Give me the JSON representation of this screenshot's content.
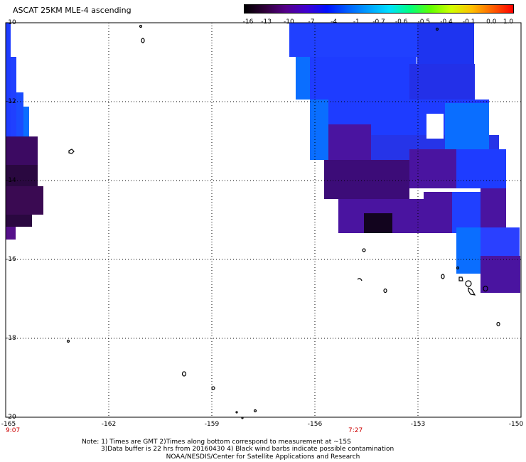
{
  "title": "ASCAT 25KM MLE-4 ascending",
  "colorbar": {
    "labels": [
      "-16",
      "-13",
      "-10",
      "-7",
      "-4",
      "-1",
      "-0.7",
      "-0.6",
      "-0.5",
      "-0.4",
      "-0.1",
      "0.0",
      "1.0"
    ],
    "colors": [
      "#000000",
      "#30003a",
      "#55008a",
      "#4000d0",
      "#0010ff",
      "#0060ff",
      "#00a0ff",
      "#00e0ff",
      "#00ff80",
      "#60ff00",
      "#d0ff00",
      "#ffc000",
      "#ff6000",
      "#ff0000"
    ]
  },
  "axes": {
    "lat_labels": [
      "-10",
      "-12",
      "-14",
      "-16",
      "-18",
      "-20"
    ],
    "lon_labels": [
      "-165",
      "-162",
      "-159",
      "-156",
      "-153",
      "-150"
    ]
  },
  "times": [
    "9:07",
    "7:27"
  ],
  "notes": {
    "line1": "Note: 1) Times are GMT 2)Times along bottom correspond to measurement at ~15S",
    "line2": "3)Data buffer is 22 hrs from 20160430 4) Black wind barbs indicate possible contamination",
    "credit": "NOAA/NESDIS/Center for Satellite Applications and Research"
  },
  "colors": {
    "time_label": "#cc0000",
    "grid": "#000000",
    "mle_dark_purple": "#3a0a5a",
    "mle_purple": "#5a14a0",
    "mle_blue": "#1e3cff",
    "mle_light_blue": "#0a6eff"
  }
}
